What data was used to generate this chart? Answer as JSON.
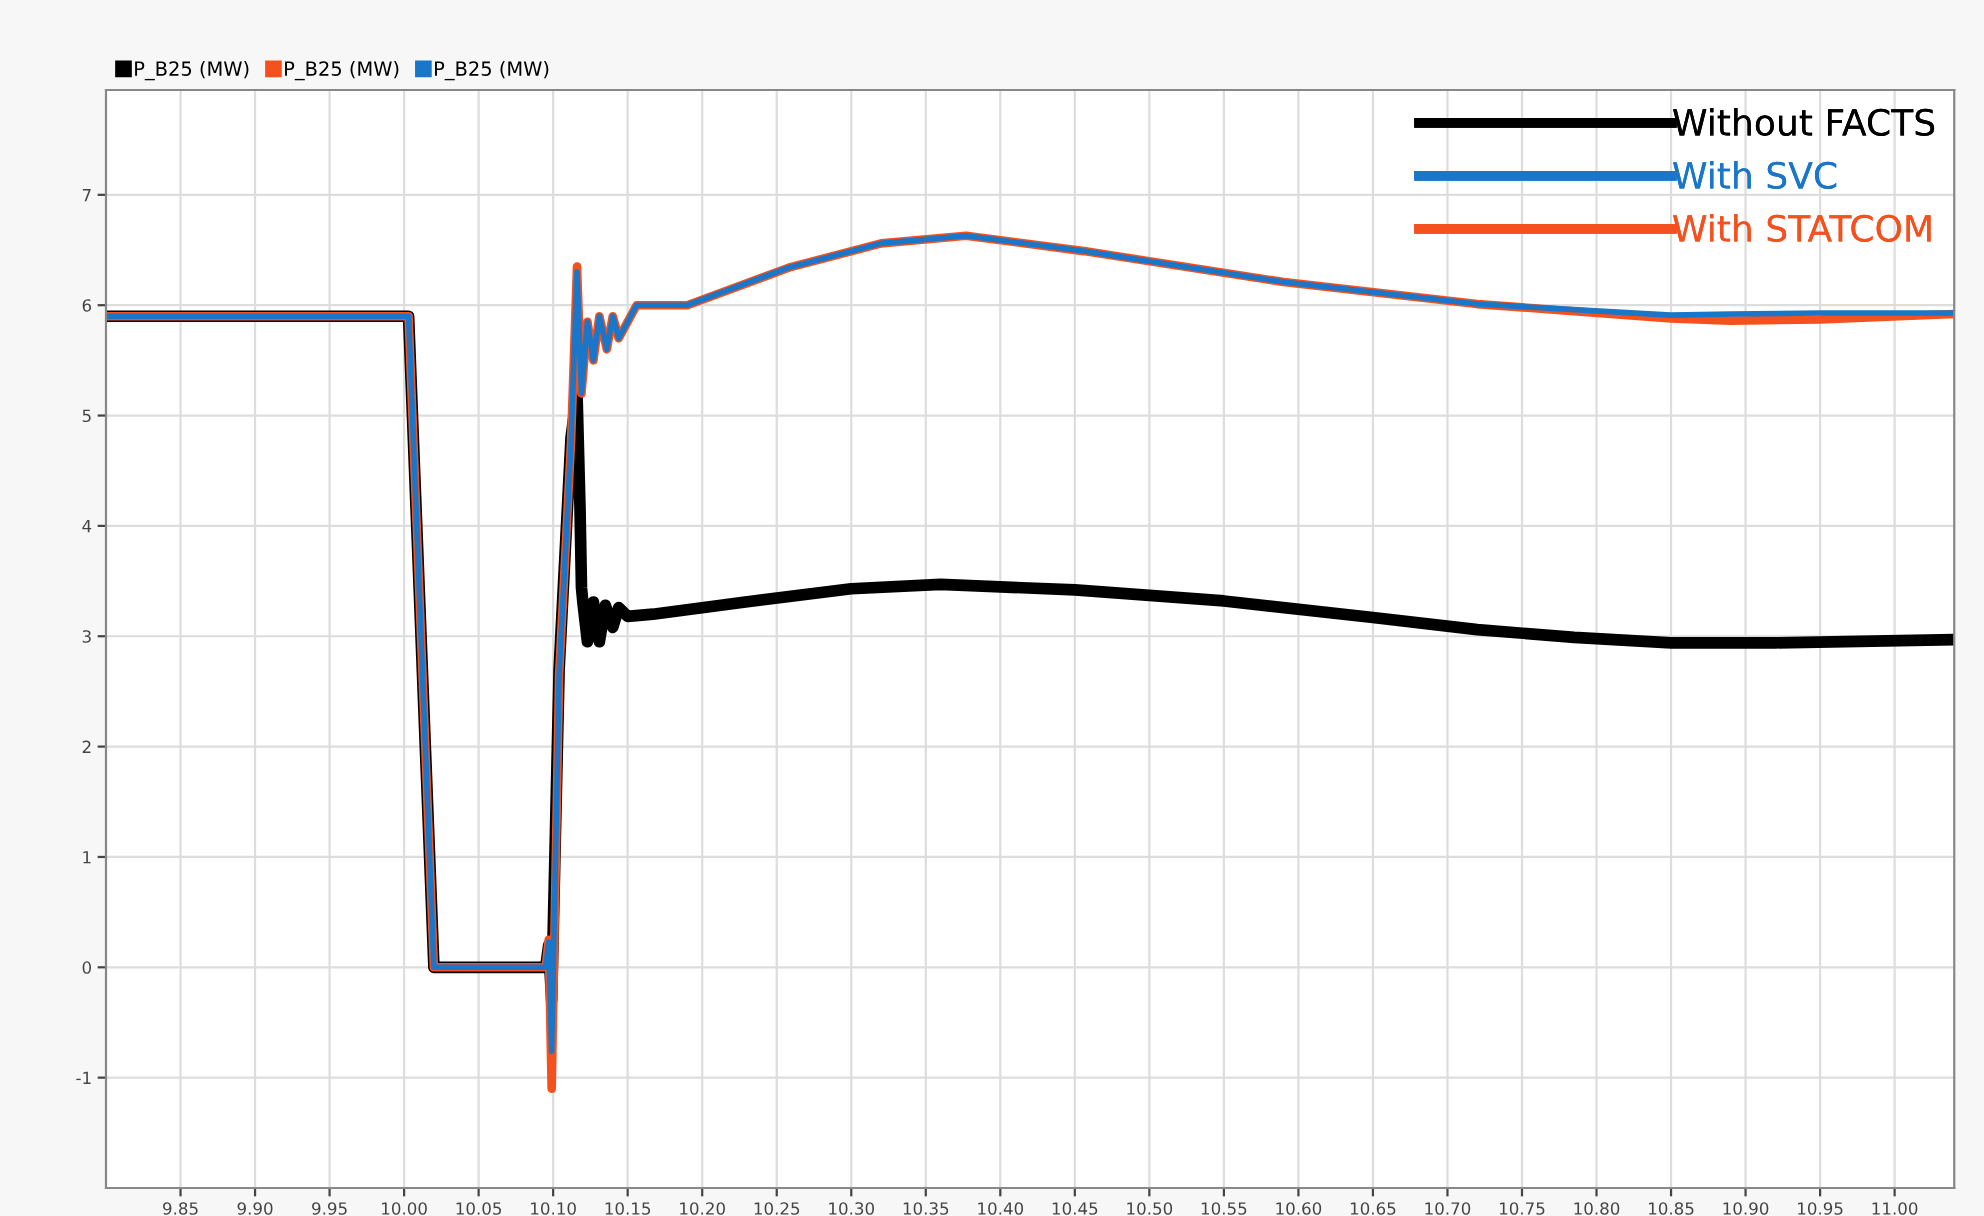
{
  "chart_data": {
    "type": "line",
    "annotations": [
      "Without FACTS",
      "With SVC",
      "With STATCOM"
    ],
    "series": [
      {
        "name": "P_B25 (MW)",
        "color": "#000000",
        "x": [
          9.8,
          10.003,
          10.02,
          10.095,
          10.097,
          10.099,
          10.104,
          10.112,
          10.116,
          10.118,
          10.119,
          10.12,
          10.123,
          10.127,
          10.131,
          10.135,
          10.14,
          10.144,
          10.15,
          10.167,
          10.229,
          10.3,
          10.36,
          10.45,
          10.55,
          10.65,
          10.72,
          10.785,
          10.85,
          10.92,
          11.04
        ],
        "values": [
          5.9,
          5.9,
          0,
          0,
          0.2,
          -0.3,
          2.7,
          4.8,
          5.2,
          4.17,
          3.44,
          3.3,
          2.95,
          3.31,
          2.95,
          3.28,
          3.08,
          3.26,
          3.18,
          3.2,
          3.31,
          3.43,
          3.47,
          3.42,
          3.32,
          3.17,
          3.06,
          2.99,
          2.94,
          2.94,
          2.97
        ]
      },
      {
        "name": "P_B25 (MW)",
        "color": "#f4511e",
        "x": [
          9.8,
          10.003,
          10.02,
          10.095,
          10.097,
          10.099,
          10.104,
          10.112,
          10.116,
          10.119,
          10.123,
          10.127,
          10.131,
          10.136,
          10.14,
          10.144,
          10.15,
          10.156,
          10.19,
          10.258,
          10.32,
          10.377,
          10.456,
          10.59,
          10.72,
          10.85,
          10.89,
          10.95,
          11.04
        ],
        "values": [
          5.9,
          5.9,
          0,
          0,
          0.25,
          -1.1,
          2.65,
          4.76,
          6.35,
          5.2,
          5.85,
          5.5,
          5.9,
          5.6,
          5.9,
          5.7,
          5.85,
          6.0,
          6.0,
          6.34,
          6.56,
          6.63,
          6.49,
          6.21,
          6.01,
          5.88,
          5.86,
          5.87,
          5.92
        ]
      },
      {
        "name": "P_B25 (MW)",
        "color": "#1976c8",
        "x": [
          9.8,
          10.003,
          10.02,
          10.095,
          10.097,
          10.099,
          10.104,
          10.112,
          10.116,
          10.119,
          10.123,
          10.127,
          10.131,
          10.136,
          10.14,
          10.144,
          10.15,
          10.156,
          10.19,
          10.258,
          10.32,
          10.377,
          10.456,
          10.59,
          10.72,
          10.85,
          10.89,
          10.95,
          11.04
        ],
        "values": [
          5.9,
          5.9,
          0,
          0,
          0.23,
          -0.76,
          2.65,
          4.76,
          6.3,
          5.2,
          5.85,
          5.5,
          5.9,
          5.6,
          5.9,
          5.7,
          5.85,
          6.0,
          6.0,
          6.34,
          6.56,
          6.63,
          6.49,
          6.21,
          6.01,
          5.91,
          5.92,
          5.93,
          5.93
        ]
      }
    ],
    "xlim": [
      9.8,
      11.04
    ],
    "ylim": [
      -2.0,
      7.95
    ],
    "xticks": [
      {
        "value": 9.85,
        "label": "9.85"
      },
      {
        "value": 9.9,
        "label": "9.90"
      },
      {
        "value": 9.95,
        "label": "9.95"
      },
      {
        "value": 10.0,
        "label": "10.00"
      },
      {
        "value": 10.05,
        "label": "10.05"
      },
      {
        "value": 10.1,
        "label": "10.10"
      },
      {
        "value": 10.15,
        "label": "10.15"
      },
      {
        "value": 10.2,
        "label": "10.20"
      },
      {
        "value": 10.25,
        "label": "10.25"
      },
      {
        "value": 10.3,
        "label": "10.30"
      },
      {
        "value": 10.35,
        "label": "10.35"
      },
      {
        "value": 10.4,
        "label": "10.40"
      },
      {
        "value": 10.45,
        "label": "10.45"
      },
      {
        "value": 10.5,
        "label": "10.50"
      },
      {
        "value": 10.55,
        "label": "10.55"
      },
      {
        "value": 10.6,
        "label": "10.60"
      },
      {
        "value": 10.65,
        "label": "10.65"
      },
      {
        "value": 10.7,
        "label": "10.70"
      },
      {
        "value": 10.75,
        "label": "10.75"
      },
      {
        "value": 10.8,
        "label": "10.80"
      },
      {
        "value": 10.85,
        "label": "10.85"
      },
      {
        "value": 10.9,
        "label": "10.90"
      },
      {
        "value": 10.95,
        "label": "10.95"
      },
      {
        "value": 11.0,
        "label": "11.00"
      }
    ],
    "yticks": [
      -1,
      0,
      1,
      2,
      3,
      4,
      5,
      6,
      7
    ],
    "grid": true,
    "legend": "top left",
    "marker": "none",
    "line_style": "solid"
  }
}
